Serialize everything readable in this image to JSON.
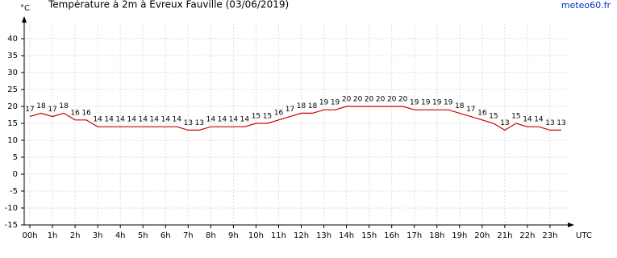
{
  "chart_data": {
    "type": "line",
    "title": "Température à 2m à Evreux Fauville (03/06/2019)",
    "source": "meteo60.fr",
    "y_label": "°C",
    "x_label": "UTC",
    "x": [
      0,
      0.5,
      1,
      1.5,
      2,
      2.5,
      3,
      3.5,
      4,
      4.5,
      5,
      5.5,
      6,
      6.5,
      7,
      7.5,
      8,
      8.5,
      9,
      9.5,
      10,
      10.5,
      11,
      11.5,
      12,
      12.5,
      13,
      13.5,
      14,
      14.5,
      15,
      15.5,
      16,
      16.5,
      17,
      17.5,
      18,
      18.5,
      19,
      19.5,
      20,
      20.5,
      21,
      21.5,
      22,
      22.5,
      23,
      23.5
    ],
    "series": [
      {
        "name": "Température",
        "color": "#cc0000",
        "values": [
          17,
          18,
          17,
          18,
          16,
          16,
          14,
          14,
          14,
          14,
          14,
          14,
          14,
          14,
          13,
          13,
          14,
          14,
          14,
          14,
          15,
          15,
          16,
          17,
          18,
          18,
          19,
          19,
          20,
          20,
          20,
          20,
          20,
          20,
          19,
          19,
          19,
          19,
          18,
          17,
          16,
          15,
          13,
          15,
          14,
          14,
          13,
          13
        ]
      }
    ],
    "xlim": [
      -0.25,
      24
    ],
    "xticks": [
      {
        "value": 0,
        "label": "00h"
      },
      {
        "value": 1,
        "label": "1h"
      },
      {
        "value": 2,
        "label": "2h"
      },
      {
        "value": 3,
        "label": "3h"
      },
      {
        "value": 4,
        "label": "4h"
      },
      {
        "value": 5,
        "label": "5h"
      },
      {
        "value": 6,
        "label": "6h"
      },
      {
        "value": 7,
        "label": "7h"
      },
      {
        "value": 8,
        "label": "8h"
      },
      {
        "value": 9,
        "label": "9h"
      },
      {
        "value": 10,
        "label": "10h"
      },
      {
        "value": 11,
        "label": "11h"
      },
      {
        "value": 12,
        "label": "12h"
      },
      {
        "value": 13,
        "label": "13h"
      },
      {
        "value": 14,
        "label": "14h"
      },
      {
        "value": 15,
        "label": "15h"
      },
      {
        "value": 16,
        "label": "16h"
      },
      {
        "value": 17,
        "label": "17h"
      },
      {
        "value": 18,
        "label": "18h"
      },
      {
        "value": 19,
        "label": "19h"
      },
      {
        "value": 20,
        "label": "20h"
      },
      {
        "value": 21,
        "label": "21h"
      },
      {
        "value": 22,
        "label": "22h"
      },
      {
        "value": 23,
        "label": "23h"
      }
    ],
    "ylim": [
      -15,
      46
    ],
    "yticks": [
      -15,
      -10,
      -5,
      0,
      5,
      10,
      15,
      20,
      25,
      30,
      35,
      40
    ],
    "grid": true
  }
}
